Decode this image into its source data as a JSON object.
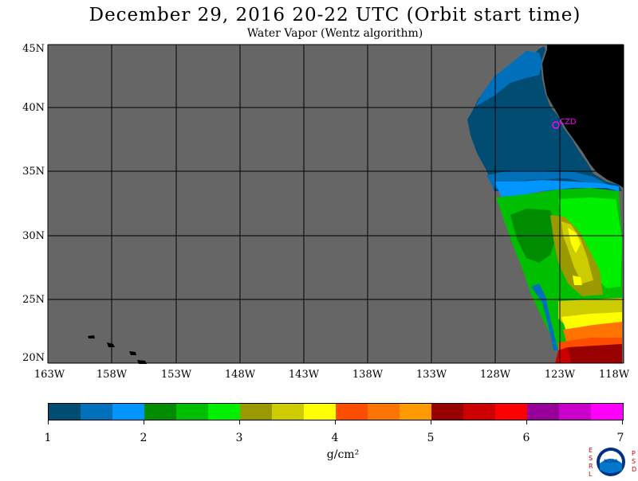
{
  "header": {
    "title": "December 29, 2016  20-22 UTC  (Orbit start time)",
    "subtitle": "Water Vapor (Wentz algorithm)"
  },
  "map": {
    "region": "Northeast Pacific Ocean off California",
    "background_no_data_color": "#666666",
    "land_color": "#000000",
    "grid_color": "#000000",
    "lat_labels": [
      "45N",
      "40N",
      "35N",
      "30N",
      "25N",
      "20N"
    ],
    "lon_labels": [
      "163W",
      "158W",
      "153W",
      "148W",
      "143W",
      "138W",
      "133W",
      "128W",
      "123W",
      "118W"
    ],
    "station": {
      "label": "CZD",
      "color": "#ff00ff"
    }
  },
  "colorbar": {
    "tick_labels": [
      "1",
      "2",
      "3",
      "4",
      "5",
      "6",
      "7"
    ],
    "units": "g/cm²",
    "colors": [
      "#004c73",
      "#0070bb",
      "#0095ff",
      "#008c00",
      "#00bf00",
      "#00f000",
      "#9a9a00",
      "#cccc00",
      "#ffff00",
      "#ff4d00",
      "#ff7300",
      "#ff9900",
      "#990000",
      "#cc0000",
      "#ff0000",
      "#990099",
      "#cc00cc",
      "#ff00ff"
    ]
  },
  "logo": {
    "left_letters": [
      "E",
      "S",
      "R",
      "L"
    ],
    "right_letters": [
      "P",
      "S",
      "D"
    ],
    "emblem": "NOAA",
    "emblem_icon": "noaa-logo-icon"
  }
}
